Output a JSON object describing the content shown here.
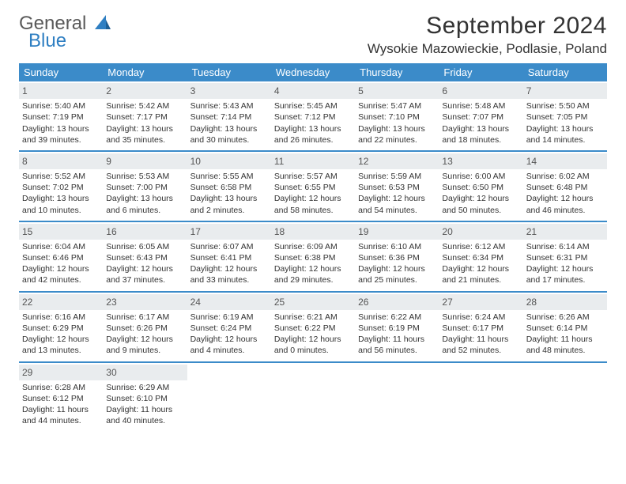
{
  "logo": {
    "word1": "General",
    "word2": "Blue"
  },
  "title": "September 2024",
  "location": "Wysokie Mazowieckie, Podlasie, Poland",
  "colors": {
    "header_bg": "#3b8bc9",
    "header_fg": "#ffffff",
    "daynum_bg": "#e9ecee",
    "row_border": "#3b8bc9",
    "text": "#333333",
    "logo_gray": "#5a5a5a",
    "logo_blue": "#2f7fc2"
  },
  "weekdays": [
    "Sunday",
    "Monday",
    "Tuesday",
    "Wednesday",
    "Thursday",
    "Friday",
    "Saturday"
  ],
  "weeks": [
    [
      {
        "day": "1",
        "sunrise": "Sunrise: 5:40 AM",
        "sunset": "Sunset: 7:19 PM",
        "daylight": "Daylight: 13 hours and 39 minutes."
      },
      {
        "day": "2",
        "sunrise": "Sunrise: 5:42 AM",
        "sunset": "Sunset: 7:17 PM",
        "daylight": "Daylight: 13 hours and 35 minutes."
      },
      {
        "day": "3",
        "sunrise": "Sunrise: 5:43 AM",
        "sunset": "Sunset: 7:14 PM",
        "daylight": "Daylight: 13 hours and 30 minutes."
      },
      {
        "day": "4",
        "sunrise": "Sunrise: 5:45 AM",
        "sunset": "Sunset: 7:12 PM",
        "daylight": "Daylight: 13 hours and 26 minutes."
      },
      {
        "day": "5",
        "sunrise": "Sunrise: 5:47 AM",
        "sunset": "Sunset: 7:10 PM",
        "daylight": "Daylight: 13 hours and 22 minutes."
      },
      {
        "day": "6",
        "sunrise": "Sunrise: 5:48 AM",
        "sunset": "Sunset: 7:07 PM",
        "daylight": "Daylight: 13 hours and 18 minutes."
      },
      {
        "day": "7",
        "sunrise": "Sunrise: 5:50 AM",
        "sunset": "Sunset: 7:05 PM",
        "daylight": "Daylight: 13 hours and 14 minutes."
      }
    ],
    [
      {
        "day": "8",
        "sunrise": "Sunrise: 5:52 AM",
        "sunset": "Sunset: 7:02 PM",
        "daylight": "Daylight: 13 hours and 10 minutes."
      },
      {
        "day": "9",
        "sunrise": "Sunrise: 5:53 AM",
        "sunset": "Sunset: 7:00 PM",
        "daylight": "Daylight: 13 hours and 6 minutes."
      },
      {
        "day": "10",
        "sunrise": "Sunrise: 5:55 AM",
        "sunset": "Sunset: 6:58 PM",
        "daylight": "Daylight: 13 hours and 2 minutes."
      },
      {
        "day": "11",
        "sunrise": "Sunrise: 5:57 AM",
        "sunset": "Sunset: 6:55 PM",
        "daylight": "Daylight: 12 hours and 58 minutes."
      },
      {
        "day": "12",
        "sunrise": "Sunrise: 5:59 AM",
        "sunset": "Sunset: 6:53 PM",
        "daylight": "Daylight: 12 hours and 54 minutes."
      },
      {
        "day": "13",
        "sunrise": "Sunrise: 6:00 AM",
        "sunset": "Sunset: 6:50 PM",
        "daylight": "Daylight: 12 hours and 50 minutes."
      },
      {
        "day": "14",
        "sunrise": "Sunrise: 6:02 AM",
        "sunset": "Sunset: 6:48 PM",
        "daylight": "Daylight: 12 hours and 46 minutes."
      }
    ],
    [
      {
        "day": "15",
        "sunrise": "Sunrise: 6:04 AM",
        "sunset": "Sunset: 6:46 PM",
        "daylight": "Daylight: 12 hours and 42 minutes."
      },
      {
        "day": "16",
        "sunrise": "Sunrise: 6:05 AM",
        "sunset": "Sunset: 6:43 PM",
        "daylight": "Daylight: 12 hours and 37 minutes."
      },
      {
        "day": "17",
        "sunrise": "Sunrise: 6:07 AM",
        "sunset": "Sunset: 6:41 PM",
        "daylight": "Daylight: 12 hours and 33 minutes."
      },
      {
        "day": "18",
        "sunrise": "Sunrise: 6:09 AM",
        "sunset": "Sunset: 6:38 PM",
        "daylight": "Daylight: 12 hours and 29 minutes."
      },
      {
        "day": "19",
        "sunrise": "Sunrise: 6:10 AM",
        "sunset": "Sunset: 6:36 PM",
        "daylight": "Daylight: 12 hours and 25 minutes."
      },
      {
        "day": "20",
        "sunrise": "Sunrise: 6:12 AM",
        "sunset": "Sunset: 6:34 PM",
        "daylight": "Daylight: 12 hours and 21 minutes."
      },
      {
        "day": "21",
        "sunrise": "Sunrise: 6:14 AM",
        "sunset": "Sunset: 6:31 PM",
        "daylight": "Daylight: 12 hours and 17 minutes."
      }
    ],
    [
      {
        "day": "22",
        "sunrise": "Sunrise: 6:16 AM",
        "sunset": "Sunset: 6:29 PM",
        "daylight": "Daylight: 12 hours and 13 minutes."
      },
      {
        "day": "23",
        "sunrise": "Sunrise: 6:17 AM",
        "sunset": "Sunset: 6:26 PM",
        "daylight": "Daylight: 12 hours and 9 minutes."
      },
      {
        "day": "24",
        "sunrise": "Sunrise: 6:19 AM",
        "sunset": "Sunset: 6:24 PM",
        "daylight": "Daylight: 12 hours and 4 minutes."
      },
      {
        "day": "25",
        "sunrise": "Sunrise: 6:21 AM",
        "sunset": "Sunset: 6:22 PM",
        "daylight": "Daylight: 12 hours and 0 minutes."
      },
      {
        "day": "26",
        "sunrise": "Sunrise: 6:22 AM",
        "sunset": "Sunset: 6:19 PM",
        "daylight": "Daylight: 11 hours and 56 minutes."
      },
      {
        "day": "27",
        "sunrise": "Sunrise: 6:24 AM",
        "sunset": "Sunset: 6:17 PM",
        "daylight": "Daylight: 11 hours and 52 minutes."
      },
      {
        "day": "28",
        "sunrise": "Sunrise: 6:26 AM",
        "sunset": "Sunset: 6:14 PM",
        "daylight": "Daylight: 11 hours and 48 minutes."
      }
    ],
    [
      {
        "day": "29",
        "sunrise": "Sunrise: 6:28 AM",
        "sunset": "Sunset: 6:12 PM",
        "daylight": "Daylight: 11 hours and 44 minutes."
      },
      {
        "day": "30",
        "sunrise": "Sunrise: 6:29 AM",
        "sunset": "Sunset: 6:10 PM",
        "daylight": "Daylight: 11 hours and 40 minutes."
      },
      null,
      null,
      null,
      null,
      null
    ]
  ]
}
